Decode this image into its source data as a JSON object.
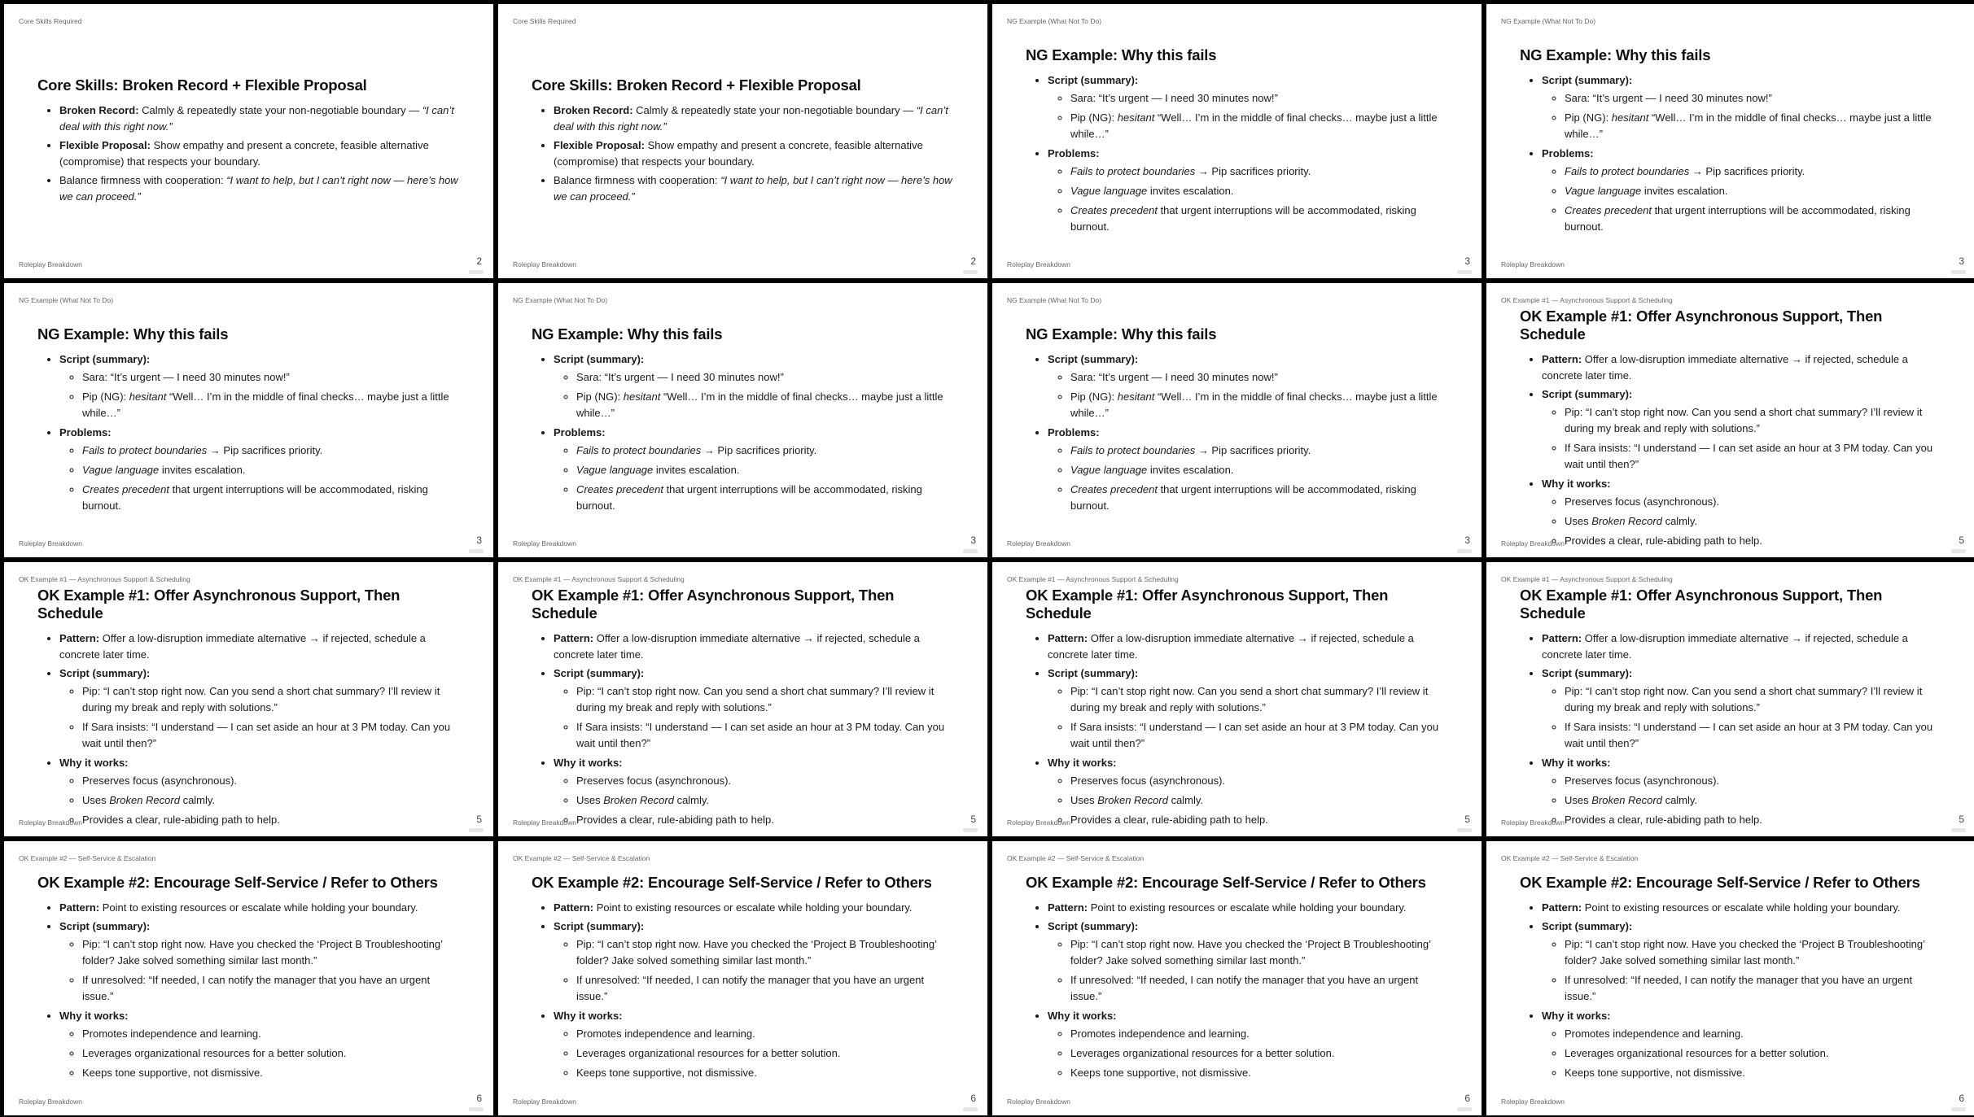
{
  "footer_label": "Roleplay Breakdown",
  "slide_order": [
    "core",
    "core",
    "ng",
    "ng",
    "ng",
    "ng",
    "ng",
    "ok1",
    "ok1",
    "ok1",
    "ok1",
    "ok1",
    "ok2",
    "ok2",
    "ok2",
    "ok2"
  ],
  "slide_defs": {
    "core": {
      "header": "Core Skills Required",
      "title": "Core Skills: Broken Record + Flexible Proposal",
      "page": "2",
      "items": [
        {
          "segs": [
            {
              "t": "Broken Record:",
              "s": "b"
            },
            {
              "t": " Calmly & repeatedly state your non-negotiable boundary — "
            },
            {
              "t": "“I can’t deal with this right now.”",
              "s": "i"
            }
          ]
        },
        {
          "segs": [
            {
              "t": "Flexible Proposal:",
              "s": "b"
            },
            {
              "t": " Show empathy and present a concrete, feasible alternative (compromise) that respects your boundary."
            }
          ]
        },
        {
          "segs": [
            {
              "t": "Balance firmness with cooperation: "
            },
            {
              "t": "“I want to help, but I can’t right now — here’s how we can proceed.”",
              "s": "i"
            }
          ]
        }
      ]
    },
    "ng": {
      "header": "NG Example (What Not To Do)",
      "title": "NG Example: Why this fails",
      "page": "3",
      "items": [
        {
          "segs": [
            {
              "t": "Script (summary):",
              "s": "b"
            }
          ],
          "sub": [
            [
              {
                "t": "Sara: “It’s urgent — I need 30 minutes now!”"
              }
            ],
            [
              {
                "t": "Pip (NG): "
              },
              {
                "t": "hesitant",
                "s": "i"
              },
              {
                "t": " “Well… I’m in the middle of final checks… maybe just a little while…”"
              }
            ]
          ]
        },
        {
          "segs": [
            {
              "t": "Problems:",
              "s": "b"
            }
          ],
          "sub": [
            [
              {
                "t": "Fails to protect boundaries",
                "s": "i"
              },
              {
                "t": " → Pip sacrifices priority."
              }
            ],
            [
              {
                "t": "Vague language",
                "s": "i"
              },
              {
                "t": " invites escalation."
              }
            ],
            [
              {
                "t": "Creates precedent",
                "s": "i"
              },
              {
                "t": " that urgent interruptions will be accommodated, risking burnout."
              }
            ]
          ]
        }
      ]
    },
    "ok1": {
      "header": "OK Example #1 — Asynchronous Support & Scheduling",
      "title": "OK Example #1: Offer Asynchronous Support, Then Schedule",
      "page": "5",
      "items": [
        {
          "segs": [
            {
              "t": "Pattern:",
              "s": "b"
            },
            {
              "t": " Offer a low-disruption immediate alternative → if rejected, schedule a concrete later time."
            }
          ]
        },
        {
          "segs": [
            {
              "t": "Script (summary):",
              "s": "b"
            }
          ],
          "sub": [
            [
              {
                "t": "Pip: “I can’t stop right now. Can you send a short chat summary? I’ll review it during my break and reply with solutions.”"
              }
            ],
            [
              {
                "t": "If Sara insists: “I understand — I can set aside an hour at 3 PM today. Can you wait until then?”"
              }
            ]
          ]
        },
        {
          "segs": [
            {
              "t": "Why it works:",
              "s": "b"
            }
          ],
          "sub": [
            [
              {
                "t": "Preserves focus (asynchronous)."
              }
            ],
            [
              {
                "t": "Uses "
              },
              {
                "t": "Broken Record",
                "s": "i"
              },
              {
                "t": " calmly."
              }
            ],
            [
              {
                "t": "Provides a clear, rule-abiding path to help."
              }
            ]
          ]
        }
      ]
    },
    "ok2": {
      "header": "OK Example #2 — Self-Service & Escalation",
      "title": "OK Example #2: Encourage Self-Service / Refer to Others",
      "page": "6",
      "items": [
        {
          "segs": [
            {
              "t": "Pattern:",
              "s": "b"
            },
            {
              "t": " Point to existing resources or escalate while holding your boundary."
            }
          ]
        },
        {
          "segs": [
            {
              "t": "Script (summary):",
              "s": "b"
            }
          ],
          "sub": [
            [
              {
                "t": "Pip: “I can’t stop right now. Have you checked the ‘Project B Troubleshooting’ folder? Jake solved something similar last month.”"
              }
            ],
            [
              {
                "t": "If unresolved: “If needed, I can notify the manager that you have an urgent issue.”"
              }
            ]
          ]
        },
        {
          "segs": [
            {
              "t": "Why it works:",
              "s": "b"
            }
          ],
          "sub": [
            [
              {
                "t": "Promotes independence and learning."
              }
            ],
            [
              {
                "t": "Leverages organizational resources for a better solution."
              }
            ],
            [
              {
                "t": "Keeps tone supportive, not dismissive."
              }
            ]
          ]
        }
      ]
    }
  }
}
